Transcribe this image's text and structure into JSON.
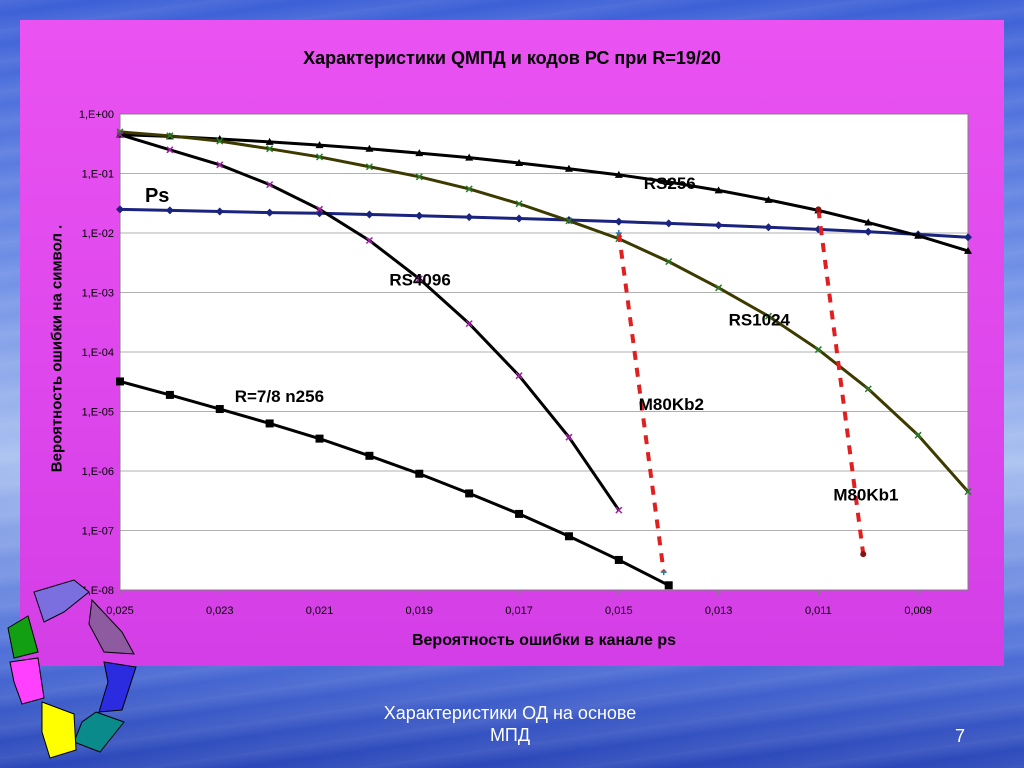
{
  "slide": {
    "footer_text_line1": "Характеристики ОД на основе",
    "footer_text_line2": "МПД",
    "page_number": "7"
  },
  "chart_data": {
    "type": "line",
    "title": "Характеристики QМПД и кодов РС при R=19/20",
    "xlabel": "Вероятность ошибки в канале рs",
    "ylabel": "Вероятность ошибки на символ  .",
    "x_scale": "linear",
    "x_reversed": true,
    "xlim": [
      0.025,
      0.008
    ],
    "x_ticks": [
      "0,025",
      "0,023",
      "0,021",
      "0,019",
      "0,017",
      "0,015",
      "0,013",
      "0,011",
      "0,009"
    ],
    "y_scale": "log",
    "ylim": [
      1e-08,
      1
    ],
    "y_ticks": [
      "1,E+00",
      "1,E-01",
      "1,E-02",
      "1,E-03",
      "1,E-04",
      "1,E-05",
      "1,E-06",
      "1,E-07",
      "1,E-08"
    ],
    "grid": "horizontal",
    "series": [
      {
        "name": "Ps",
        "color": "#1a237e",
        "marker": "diamond",
        "x": [
          0.025,
          0.024,
          0.023,
          0.022,
          0.021,
          0.02,
          0.019,
          0.018,
          0.017,
          0.016,
          0.015,
          0.014,
          0.013,
          0.012,
          0.011,
          0.01,
          0.009,
          0.008
        ],
        "y": [
          0.025,
          0.024,
          0.023,
          0.022,
          0.0215,
          0.0205,
          0.0195,
          0.0185,
          0.0175,
          0.0165,
          0.0155,
          0.0145,
          0.0135,
          0.0125,
          0.0115,
          0.0105,
          0.0095,
          0.0085
        ]
      },
      {
        "name": "RS256",
        "color": "#000000",
        "marker": "triangle",
        "x": [
          0.025,
          0.024,
          0.023,
          0.022,
          0.021,
          0.02,
          0.019,
          0.018,
          0.017,
          0.016,
          0.015,
          0.014,
          0.013,
          0.012,
          0.011,
          0.01,
          0.009,
          0.008
        ],
        "y": [
          0.45,
          0.42,
          0.38,
          0.34,
          0.3,
          0.26,
          0.22,
          0.185,
          0.15,
          0.12,
          0.095,
          0.072,
          0.052,
          0.036,
          0.024,
          0.015,
          0.009,
          0.005
        ]
      },
      {
        "name": "RS1024",
        "color": "#3d3a00",
        "marker": "x",
        "x": [
          0.025,
          0.024,
          0.023,
          0.022,
          0.021,
          0.02,
          0.019,
          0.018,
          0.017,
          0.016,
          0.015,
          0.014,
          0.013,
          0.012,
          0.011,
          0.01,
          0.009,
          0.008
        ],
        "y": [
          0.5,
          0.43,
          0.35,
          0.26,
          0.19,
          0.13,
          0.088,
          0.055,
          0.031,
          0.016,
          0.008,
          0.0033,
          0.0012,
          0.0004,
          0.00011,
          2.4e-05,
          4e-06,
          4.5e-07
        ]
      },
      {
        "name": "RS4096",
        "color": "#000000",
        "marker": "x-purple",
        "x": [
          0.025,
          0.024,
          0.023,
          0.022,
          0.021,
          0.02,
          0.019,
          0.018,
          0.017,
          0.016,
          0.015
        ],
        "y": [
          0.45,
          0.25,
          0.14,
          0.065,
          0.025,
          0.0075,
          0.0017,
          0.0003,
          4e-05,
          3.7e-06,
          2.2e-07
        ]
      },
      {
        "name": "R=7/8  n256",
        "color": "#000000",
        "marker": "square",
        "x": [
          0.025,
          0.024,
          0.023,
          0.022,
          0.021,
          0.02,
          0.019,
          0.018,
          0.017,
          0.016,
          0.015,
          0.014
        ],
        "y": [
          3.2e-05,
          1.9e-05,
          1.1e-05,
          6.3e-06,
          3.5e-06,
          1.8e-06,
          9e-07,
          4.2e-07,
          1.9e-07,
          8e-08,
          3.2e-08,
          1.2e-08
        ]
      },
      {
        "name": "M80Kb2",
        "color": "#e02020",
        "marker": "plus",
        "dashed": true,
        "x": [
          0.015,
          0.0141
        ],
        "y": [
          0.01,
          2e-08
        ]
      },
      {
        "name": "M80Kb1",
        "color": "#e02020",
        "marker": "dot",
        "dashed": true,
        "x": [
          0.011,
          0.0101
        ],
        "y": [
          0.025,
          4e-08
        ]
      }
    ],
    "labels": [
      {
        "text": "RS256",
        "x": 0.0145,
        "y": 0.055
      },
      {
        "text": "Ps",
        "x": 0.0245,
        "y": 0.033
      },
      {
        "text": "RS4096",
        "x": 0.0196,
        "y": 0.0013
      },
      {
        "text": "RS1024",
        "x": 0.0128,
        "y": 0.00028
      },
      {
        "text": "R=7/8  n256",
        "x": 0.0227,
        "y": 1.45e-05
      },
      {
        "text": "M80Kb2",
        "x": 0.0146,
        "y": 1.05e-05
      },
      {
        "text": "M80Kb1",
        "x": 0.0107,
        "y": 3.2e-07
      }
    ]
  }
}
